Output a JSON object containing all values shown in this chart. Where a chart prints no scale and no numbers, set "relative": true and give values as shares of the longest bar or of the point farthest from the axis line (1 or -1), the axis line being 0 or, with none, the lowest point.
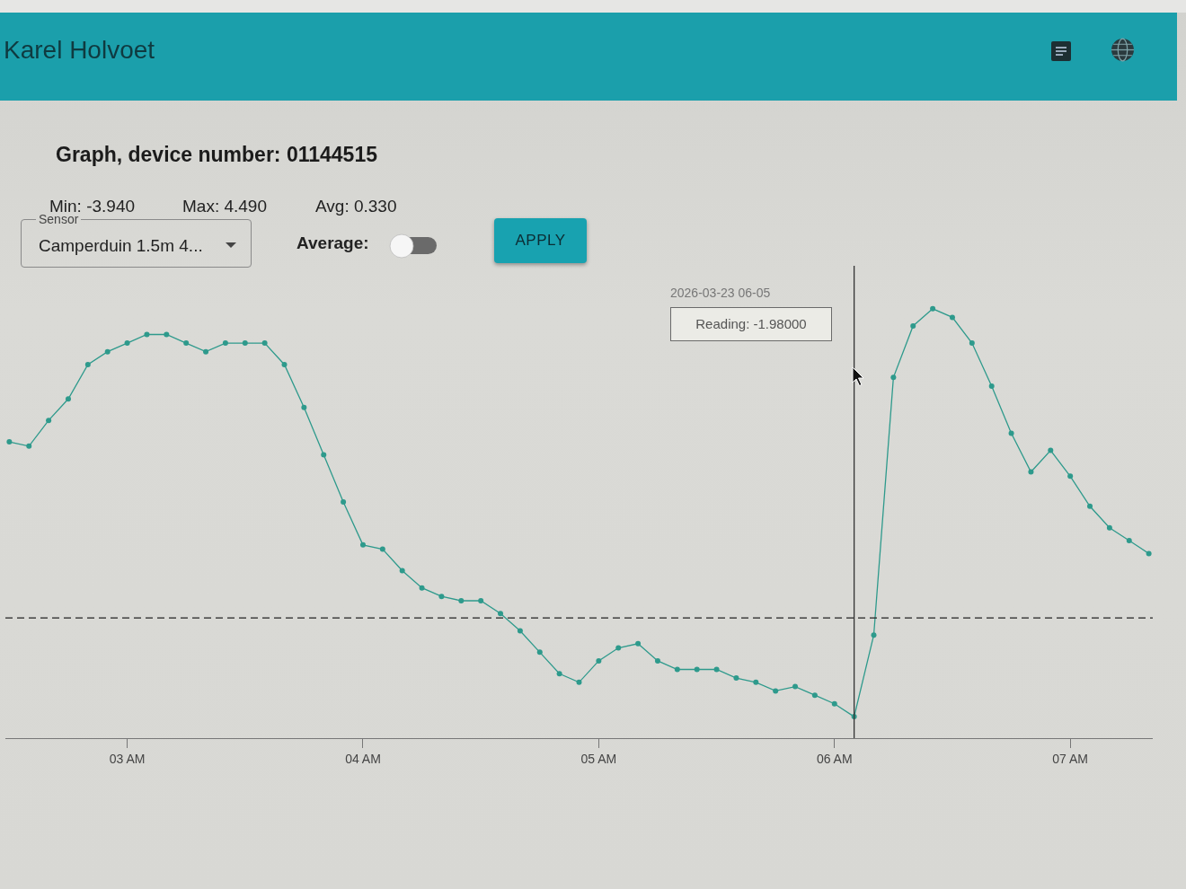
{
  "chart_data": {
    "type": "line",
    "title": "Graph, device number: 01144515",
    "annotations": [
      "Karel Holvoet",
      "Min: -3.940",
      "Max: 4.490",
      "Avg: 0.330",
      "Sensor",
      "Camperduin 1.5m 4...",
      "Average:",
      "APPLY",
      "2026-03-23 06-05",
      "Reading: -1.98000"
    ],
    "x": [
      "2026-03-23T02:30",
      "2026-03-23T02:35",
      "2026-03-23T02:40",
      "2026-03-23T02:45",
      "2026-03-23T02:50",
      "2026-03-23T02:55",
      "2026-03-23T03:00",
      "2026-03-23T03:05",
      "2026-03-23T03:10",
      "2026-03-23T03:15",
      "2026-03-23T03:20",
      "2026-03-23T03:25",
      "2026-03-23T03:30",
      "2026-03-23T03:35",
      "2026-03-23T03:40",
      "2026-03-23T03:45",
      "2026-03-23T03:50",
      "2026-03-23T03:55",
      "2026-03-23T04:00",
      "2026-03-23T04:05",
      "2026-03-23T04:10",
      "2026-03-23T04:15",
      "2026-03-23T04:20",
      "2026-03-23T04:25",
      "2026-03-23T04:30",
      "2026-03-23T04:35",
      "2026-03-23T04:40",
      "2026-03-23T04:45",
      "2026-03-23T04:50",
      "2026-03-23T04:55",
      "2026-03-23T05:00",
      "2026-03-23T05:05",
      "2026-03-23T05:10",
      "2026-03-23T05:15",
      "2026-03-23T05:20",
      "2026-03-23T05:25",
      "2026-03-23T05:30",
      "2026-03-23T05:35",
      "2026-03-23T05:40",
      "2026-03-23T05:45",
      "2026-03-23T05:50",
      "2026-03-23T05:55",
      "2026-03-23T06:00",
      "2026-03-23T06:05",
      "2026-03-23T06:10",
      "2026-03-23T06:15",
      "2026-03-23T06:20",
      "2026-03-23T06:25",
      "2026-03-23T06:30",
      "2026-03-23T06:35",
      "2026-03-23T06:40",
      "2026-03-23T06:45",
      "2026-03-23T06:50",
      "2026-03-23T06:55",
      "2026-03-23T07:00",
      "2026-03-23T07:05",
      "2026-03-23T07:10",
      "2026-03-23T07:15",
      "2026-03-23T07:20"
    ],
    "values": [
      0.69,
      0.68,
      0.74,
      0.79,
      0.87,
      0.9,
      0.92,
      0.94,
      0.94,
      0.92,
      0.9,
      0.92,
      0.92,
      0.92,
      0.87,
      0.77,
      0.66,
      0.55,
      0.45,
      0.44,
      0.39,
      0.35,
      0.33,
      0.32,
      0.32,
      0.29,
      0.25,
      0.2,
      0.15,
      0.13,
      0.18,
      0.21,
      0.22,
      0.18,
      0.16,
      0.16,
      0.16,
      0.14,
      0.13,
      0.11,
      0.12,
      0.1,
      0.08,
      0.05,
      0.24,
      0.84,
      0.96,
      1,
      0.98,
      0.92,
      0.82,
      0.71,
      0.62,
      0.67,
      0.61,
      0.54,
      0.49,
      0.46,
      0.43
    ],
    "color": "#2e9a8c",
    "marker": "circle",
    "line_style": "solid",
    "relative": true,
    "grid": false,
    "tick_labels": "x",
    "xlim": [
      "2026-03-23T02:29",
      "2026-03-23T07:21"
    ],
    "xticks": [
      {
        "value": "2026-03-23T03:00",
        "label": "03 AM"
      },
      {
        "value": "2026-03-23T04:00",
        "label": "04 AM"
      },
      {
        "value": "2026-03-23T05:00",
        "label": "05 AM"
      },
      {
        "value": "2026-03-23T06:00",
        "label": "06 AM"
      },
      {
        "value": "2026-03-23T07:00",
        "label": "07 AM"
      }
    ],
    "ref_lines": [
      {
        "axis": "y",
        "value": 0.28,
        "color": "#222222",
        "line_style": "dashed"
      },
      {
        "axis": "x",
        "value": "2026-03-23T06:05",
        "color": "#333333",
        "line_style": "solid"
      }
    ]
  }
}
